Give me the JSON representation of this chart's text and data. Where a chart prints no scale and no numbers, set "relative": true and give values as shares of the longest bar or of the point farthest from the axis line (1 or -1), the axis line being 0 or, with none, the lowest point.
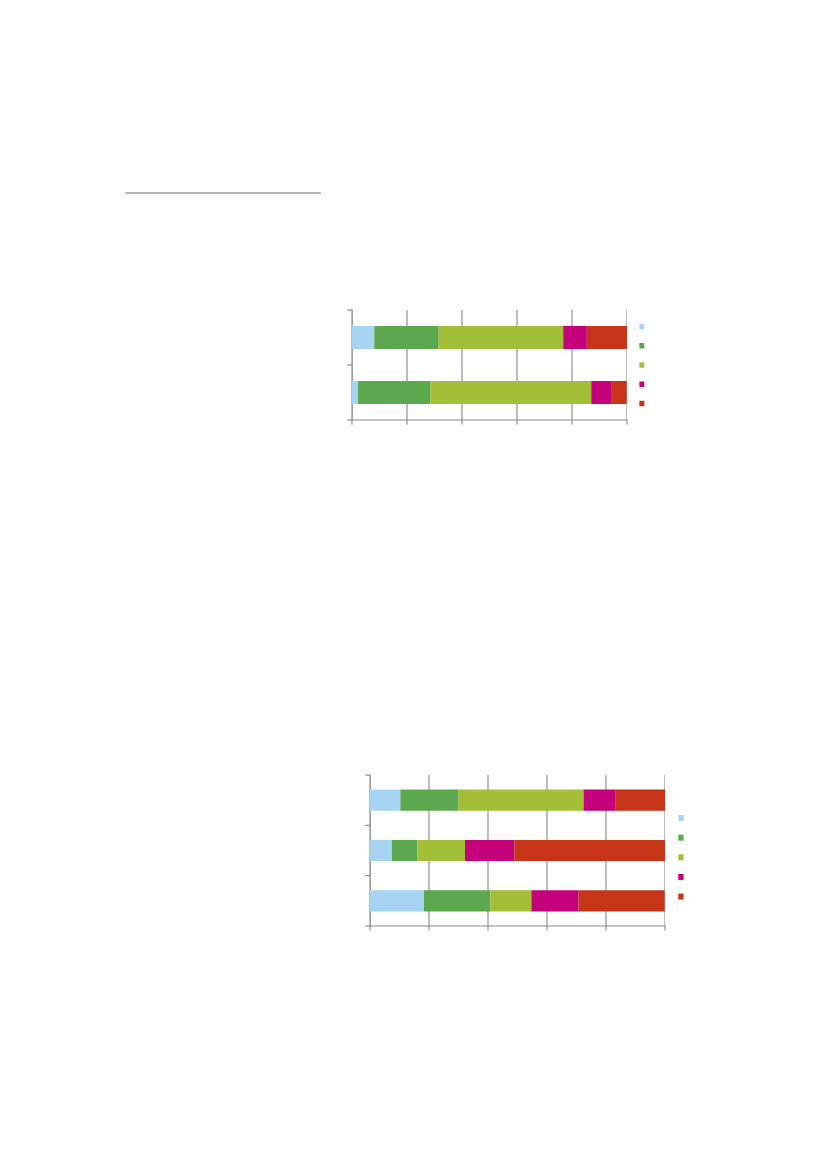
{
  "chart_data": [
    {
      "type": "bar",
      "orientation": "horizontal",
      "stacked": true,
      "relative": true,
      "grid": "x",
      "tick_labels": false,
      "categories": [
        null,
        null
      ],
      "series": [
        {
          "color": "#a8d4f4",
          "values": [
            0.081,
            0.022
          ]
        },
        {
          "color": "#5ba84f",
          "values": [
            0.234,
            0.263
          ]
        },
        {
          "color": "#a2bf37",
          "values": [
            0.453,
            0.585
          ]
        },
        {
          "color": "#c4007a",
          "values": [
            0.086,
            0.072
          ]
        },
        {
          "color": "#c63518",
          "values": [
            0.146,
            0.057
          ]
        }
      ]
    },
    {
      "type": "bar",
      "orientation": "horizontal",
      "stacked": true,
      "relative": true,
      "grid": "x",
      "tick_labels": false,
      "categories": [
        null,
        null,
        null
      ],
      "series": [
        {
          "color": "#a8d4f4",
          "values": [
            0.103,
            0.074,
            0.183
          ]
        },
        {
          "color": "#5ba84f",
          "values": [
            0.197,
            0.087,
            0.225
          ]
        },
        {
          "color": "#a2bf37",
          "values": [
            0.424,
            0.161,
            0.139
          ]
        },
        {
          "color": "#c4007a",
          "values": [
            0.109,
            0.168,
            0.16
          ]
        },
        {
          "color": "#c63518",
          "values": [
            0.167,
            0.51,
            0.292
          ]
        }
      ]
    }
  ]
}
